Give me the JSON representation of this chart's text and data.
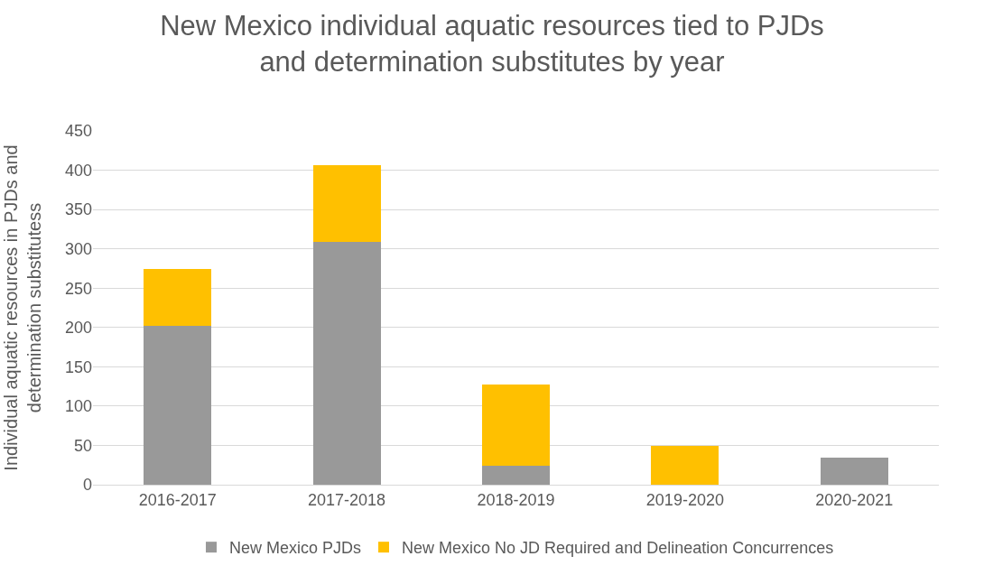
{
  "chart_data": {
    "type": "bar",
    "title": "New Mexico individual aquatic resources tied to PJDs and determination substitutes by year",
    "ylabel": "Individual aquatic resources in PJDs and determination substitutess",
    "categories": [
      "2016-2017",
      "2017-2018",
      "2018-2019",
      "2019-2020",
      "2020-2021"
    ],
    "stacked": true,
    "series": [
      {
        "name": "New Mexico PJDs",
        "color": "#999999",
        "values": [
          202,
          309,
          24,
          0,
          35
        ]
      },
      {
        "name": "New Mexico No JD Required and Delineation Concurrences",
        "color": "#ffc000",
        "values": [
          72,
          97,
          103,
          49,
          0
        ]
      }
    ],
    "ylim": [
      0,
      450
    ],
    "yticks": [
      0,
      50,
      100,
      150,
      200,
      250,
      300,
      350,
      400,
      450
    ],
    "grid": "y",
    "legend": "bottom"
  }
}
